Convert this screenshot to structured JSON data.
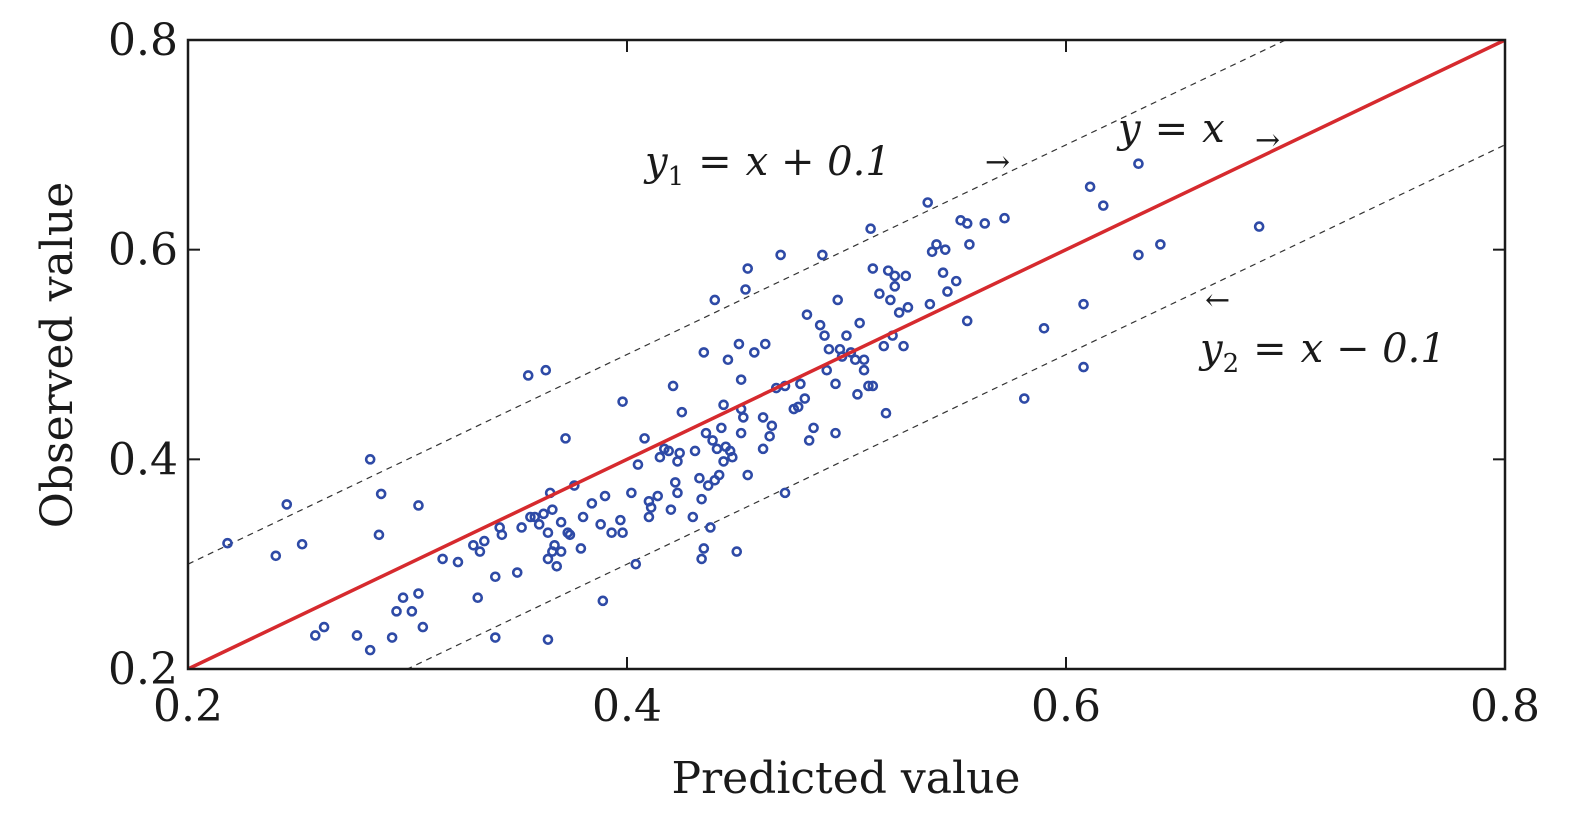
{
  "chart_data": {
    "type": "scatter",
    "title": "",
    "xlabel": "Predicted value",
    "ylabel": "Observed value",
    "xlim": [
      0.2,
      0.8
    ],
    "ylim": [
      0.2,
      0.8
    ],
    "xticks": [
      "0.2",
      "0.4",
      "0.6",
      "0.8"
    ],
    "yticks": [
      "0.2",
      "0.4",
      "0.6",
      "0.8"
    ],
    "grid": false,
    "colors": {
      "points": "#2e4aa6",
      "identity_line": "#d62a2e",
      "band_lines": "#333333"
    },
    "lines": [
      {
        "label": "y = x",
        "offset": 0.0,
        "style": "solid"
      },
      {
        "label": "y1 = x + 0.1",
        "offset": 0.1,
        "style": "dashed"
      },
      {
        "label": "y2 = x - 0.1",
        "offset": -0.1,
        "style": "dashed"
      }
    ],
    "annotations": {
      "identity": {
        "lhs": "y",
        "rhs": "x"
      },
      "upper": {
        "lhs": "y",
        "sub": "1",
        "rhs": "x + 0.1"
      },
      "lower": {
        "lhs": "y",
        "sub": "2",
        "rhs": "x − 0.1"
      }
    },
    "points": [
      [
        0.218,
        0.32
      ],
      [
        0.245,
        0.357
      ],
      [
        0.24,
        0.308
      ],
      [
        0.252,
        0.319
      ],
      [
        0.283,
        0.4
      ],
      [
        0.288,
        0.367
      ],
      [
        0.287,
        0.328
      ],
      [
        0.305,
        0.356
      ],
      [
        0.258,
        0.232
      ],
      [
        0.262,
        0.24
      ],
      [
        0.277,
        0.232
      ],
      [
        0.283,
        0.218
      ],
      [
        0.293,
        0.23
      ],
      [
        0.295,
        0.255
      ],
      [
        0.298,
        0.268
      ],
      [
        0.302,
        0.255
      ],
      [
        0.305,
        0.272
      ],
      [
        0.307,
        0.24
      ],
      [
        0.316,
        0.305
      ],
      [
        0.323,
        0.302
      ],
      [
        0.33,
        0.318
      ],
      [
        0.333,
        0.312
      ],
      [
        0.335,
        0.322
      ],
      [
        0.332,
        0.268
      ],
      [
        0.34,
        0.288
      ],
      [
        0.34,
        0.23
      ],
      [
        0.342,
        0.335
      ],
      [
        0.343,
        0.328
      ],
      [
        0.35,
        0.292
      ],
      [
        0.352,
        0.335
      ],
      [
        0.356,
        0.345
      ],
      [
        0.355,
        0.48
      ],
      [
        0.363,
        0.485
      ],
      [
        0.358,
        0.345
      ],
      [
        0.36,
        0.338
      ],
      [
        0.362,
        0.348
      ],
      [
        0.364,
        0.33
      ],
      [
        0.365,
        0.368
      ],
      [
        0.366,
        0.352
      ],
      [
        0.366,
        0.312
      ],
      [
        0.364,
        0.305
      ],
      [
        0.364,
        0.228
      ],
      [
        0.367,
        0.318
      ],
      [
        0.368,
        0.298
      ],
      [
        0.37,
        0.34
      ],
      [
        0.37,
        0.312
      ],
      [
        0.372,
        0.42
      ],
      [
        0.373,
        0.33
      ],
      [
        0.374,
        0.328
      ],
      [
        0.376,
        0.375
      ],
      [
        0.379,
        0.315
      ],
      [
        0.38,
        0.345
      ],
      [
        0.384,
        0.358
      ],
      [
        0.388,
        0.338
      ],
      [
        0.389,
        0.265
      ],
      [
        0.39,
        0.365
      ],
      [
        0.393,
        0.33
      ],
      [
        0.397,
        0.342
      ],
      [
        0.398,
        0.33
      ],
      [
        0.398,
        0.455
      ],
      [
        0.402,
        0.368
      ],
      [
        0.404,
        0.3
      ],
      [
        0.405,
        0.395
      ],
      [
        0.408,
        0.42
      ],
      [
        0.41,
        0.345
      ],
      [
        0.41,
        0.36
      ],
      [
        0.411,
        0.354
      ],
      [
        0.414,
        0.365
      ],
      [
        0.415,
        0.402
      ],
      [
        0.417,
        0.41
      ],
      [
        0.419,
        0.408
      ],
      [
        0.42,
        0.352
      ],
      [
        0.421,
        0.47
      ],
      [
        0.422,
        0.378
      ],
      [
        0.423,
        0.398
      ],
      [
        0.423,
        0.368
      ],
      [
        0.424,
        0.406
      ],
      [
        0.425,
        0.445
      ],
      [
        0.43,
        0.345
      ],
      [
        0.431,
        0.408
      ],
      [
        0.433,
        0.382
      ],
      [
        0.434,
        0.362
      ],
      [
        0.434,
        0.305
      ],
      [
        0.435,
        0.315
      ],
      [
        0.435,
        0.502
      ],
      [
        0.436,
        0.425
      ],
      [
        0.437,
        0.375
      ],
      [
        0.438,
        0.335
      ],
      [
        0.439,
        0.418
      ],
      [
        0.44,
        0.38
      ],
      [
        0.44,
        0.552
      ],
      [
        0.441,
        0.41
      ],
      [
        0.442,
        0.385
      ],
      [
        0.443,
        0.43
      ],
      [
        0.444,
        0.452
      ],
      [
        0.444,
        0.398
      ],
      [
        0.445,
        0.412
      ],
      [
        0.446,
        0.495
      ],
      [
        0.447,
        0.408
      ],
      [
        0.448,
        0.402
      ],
      [
        0.45,
        0.312
      ],
      [
        0.451,
        0.51
      ],
      [
        0.452,
        0.448
      ],
      [
        0.452,
        0.476
      ],
      [
        0.452,
        0.425
      ],
      [
        0.453,
        0.44
      ],
      [
        0.454,
        0.562
      ],
      [
        0.455,
        0.582
      ],
      [
        0.455,
        0.385
      ],
      [
        0.458,
        0.502
      ],
      [
        0.462,
        0.41
      ],
      [
        0.462,
        0.44
      ],
      [
        0.463,
        0.51
      ],
      [
        0.465,
        0.422
      ],
      [
        0.466,
        0.432
      ],
      [
        0.468,
        0.468
      ],
      [
        0.47,
        0.595
      ],
      [
        0.472,
        0.47
      ],
      [
        0.472,
        0.368
      ],
      [
        0.476,
        0.448
      ],
      [
        0.478,
        0.45
      ],
      [
        0.479,
        0.472
      ],
      [
        0.481,
        0.458
      ],
      [
        0.482,
        0.538
      ],
      [
        0.483,
        0.418
      ],
      [
        0.485,
        0.43
      ],
      [
        0.488,
        0.528
      ],
      [
        0.489,
        0.595
      ],
      [
        0.49,
        0.518
      ],
      [
        0.491,
        0.485
      ],
      [
        0.492,
        0.505
      ],
      [
        0.495,
        0.472
      ],
      [
        0.495,
        0.425
      ],
      [
        0.496,
        0.552
      ],
      [
        0.497,
        0.505
      ],
      [
        0.498,
        0.498
      ],
      [
        0.5,
        0.518
      ],
      [
        0.502,
        0.502
      ],
      [
        0.504,
        0.495
      ],
      [
        0.505,
        0.462
      ],
      [
        0.506,
        0.53
      ],
      [
        0.508,
        0.485
      ],
      [
        0.508,
        0.495
      ],
      [
        0.51,
        0.47
      ],
      [
        0.511,
        0.62
      ],
      [
        0.512,
        0.582
      ],
      [
        0.512,
        0.47
      ],
      [
        0.515,
        0.558
      ],
      [
        0.517,
        0.508
      ],
      [
        0.518,
        0.444
      ],
      [
        0.519,
        0.58
      ],
      [
        0.52,
        0.552
      ],
      [
        0.521,
        0.518
      ],
      [
        0.522,
        0.565
      ],
      [
        0.522,
        0.575
      ],
      [
        0.524,
        0.54
      ],
      [
        0.526,
        0.508
      ],
      [
        0.527,
        0.575
      ],
      [
        0.528,
        0.545
      ],
      [
        0.537,
        0.645
      ],
      [
        0.538,
        0.548
      ],
      [
        0.539,
        0.598
      ],
      [
        0.541,
        0.605
      ],
      [
        0.544,
        0.578
      ],
      [
        0.545,
        0.6
      ],
      [
        0.546,
        0.56
      ],
      [
        0.55,
        0.57
      ],
      [
        0.552,
        0.628
      ],
      [
        0.555,
        0.625
      ],
      [
        0.555,
        0.532
      ],
      [
        0.556,
        0.605
      ],
      [
        0.563,
        0.625
      ],
      [
        0.572,
        0.63
      ],
      [
        0.581,
        0.458
      ],
      [
        0.59,
        0.525
      ],
      [
        0.608,
        0.548
      ],
      [
        0.608,
        0.488
      ],
      [
        0.611,
        0.66
      ],
      [
        0.617,
        0.642
      ],
      [
        0.633,
        0.595
      ],
      [
        0.633,
        0.682
      ],
      [
        0.643,
        0.605
      ],
      [
        0.688,
        0.622
      ]
    ]
  }
}
